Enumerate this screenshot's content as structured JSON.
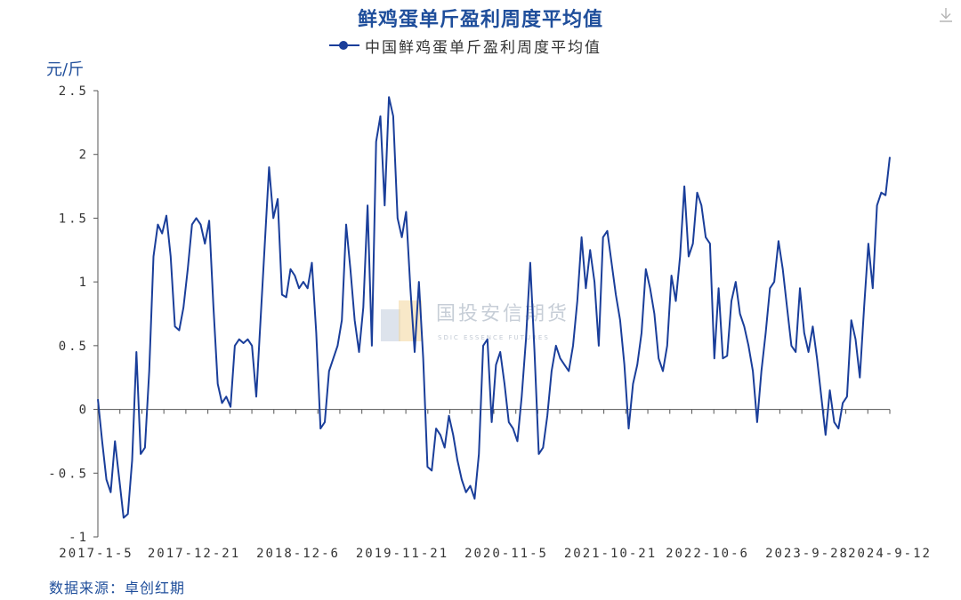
{
  "chart_data": {
    "type": "line",
    "title": "鲜鸡蛋单斤盈利周度平均值",
    "ylabel": "元/斤",
    "xlabel": "",
    "ylim": [
      -1,
      2.5
    ],
    "y_ticks": [
      2.5,
      2,
      1.5,
      1,
      0.5,
      0,
      -0.5,
      -1
    ],
    "y_tick_labels": [
      "2.5",
      "2",
      "1.5",
      "1",
      "0.5",
      "0",
      "-0.5",
      "-1"
    ],
    "x_tick_labels": [
      "2017-1-5",
      "2017-12-21",
      "2018-12-6",
      "2019-11-21",
      "2020-11-5",
      "2021-10-21",
      "2022-10-6",
      "2023-9-28",
      "2024-9-12"
    ],
    "grid": false,
    "legend_position": "top-center",
    "series": [
      {
        "name": "中国鲜鸡蛋单斤盈利周度平均值",
        "color": "#1a3e9a",
        "values": [
          0.08,
          -0.25,
          -0.55,
          -0.65,
          -0.25,
          -0.55,
          -0.85,
          -0.82,
          -0.4,
          0.45,
          -0.35,
          -0.3,
          0.3,
          1.2,
          1.45,
          1.38,
          1.52,
          1.2,
          0.65,
          0.62,
          0.8,
          1.1,
          1.45,
          1.5,
          1.45,
          1.3,
          1.48,
          0.8,
          0.2,
          0.05,
          0.1,
          0.02,
          0.5,
          0.55,
          0.52,
          0.55,
          0.5,
          0.1,
          0.7,
          1.3,
          1.9,
          1.5,
          1.65,
          0.9,
          0.88,
          1.1,
          1.05,
          0.95,
          1.0,
          0.95,
          1.15,
          0.6,
          -0.15,
          -0.1,
          0.3,
          0.4,
          0.5,
          0.7,
          1.45,
          1.1,
          0.7,
          0.45,
          0.8,
          1.6,
          0.5,
          2.1,
          2.3,
          1.6,
          2.45,
          2.3,
          1.5,
          1.35,
          1.55,
          0.95,
          0.45,
          1.0,
          0.4,
          -0.45,
          -0.48,
          -0.15,
          -0.2,
          -0.3,
          -0.05,
          -0.2,
          -0.4,
          -0.55,
          -0.65,
          -0.6,
          -0.7,
          -0.35,
          0.5,
          0.55,
          -0.1,
          0.35,
          0.45,
          0.2,
          -0.1,
          -0.15,
          -0.25,
          0.1,
          0.55,
          1.15,
          0.45,
          -0.35,
          -0.3,
          -0.05,
          0.3,
          0.5,
          0.4,
          0.35,
          0.3,
          0.5,
          0.85,
          1.35,
          0.95,
          1.25,
          1.0,
          0.5,
          1.35,
          1.4,
          1.15,
          0.9,
          0.7,
          0.35,
          -0.15,
          0.2,
          0.35,
          0.6,
          1.1,
          0.95,
          0.75,
          0.4,
          0.3,
          0.5,
          1.05,
          0.85,
          1.2,
          1.75,
          1.2,
          1.3,
          1.7,
          1.6,
          1.35,
          1.3,
          0.4,
          0.95,
          0.4,
          0.42,
          0.85,
          1.0,
          0.75,
          0.65,
          0.5,
          0.3,
          -0.1,
          0.3,
          0.6,
          0.95,
          1.0,
          1.32,
          1.1,
          0.8,
          0.5,
          0.45,
          0.95,
          0.6,
          0.45,
          0.65,
          0.4,
          0.1,
          -0.2,
          0.15,
          -0.1,
          -0.15,
          0.05,
          0.1,
          0.7,
          0.55,
          0.25,
          0.8,
          1.3,
          0.95,
          1.6,
          1.7,
          1.68,
          1.98
        ]
      }
    ],
    "source": "数据来源：卓创红期",
    "watermark": {
      "name_cn": "国投安信期货",
      "name_en": "SDIC ESSENCE FUTURES"
    }
  },
  "icons": {
    "download": "download-icon"
  }
}
